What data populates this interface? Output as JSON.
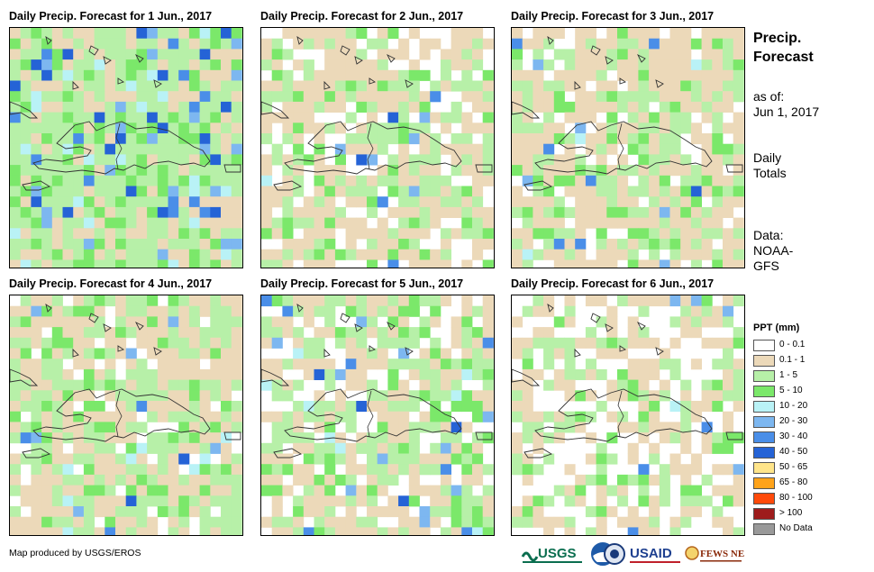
{
  "panels": [
    {
      "title": "Daily Precip. Forecast for 1 Jun., 2017",
      "seed": 11,
      "green": 0.55,
      "tan": 0.3,
      "blue": 0.16
    },
    {
      "title": "Daily Precip. Forecast for 2 Jun., 2017",
      "seed": 23,
      "green": 0.3,
      "tan": 0.42,
      "blue": 0.02
    },
    {
      "title": "Daily Precip. Forecast for 3 Jun., 2017",
      "seed": 37,
      "green": 0.32,
      "tan": 0.52,
      "blue": 0.03
    },
    {
      "title": "Daily Precip. Forecast for 4 Jun., 2017",
      "seed": 41,
      "green": 0.42,
      "tan": 0.42,
      "blue": 0.05
    },
    {
      "title": "Daily Precip. Forecast for 5 Jun., 2017",
      "seed": 53,
      "green": 0.38,
      "tan": 0.36,
      "blue": 0.04
    },
    {
      "title": "Daily Precip. Forecast for 6 Jun., 2017",
      "seed": 67,
      "green": 0.22,
      "tan": 0.38,
      "blue": 0.01
    }
  ],
  "side": {
    "title_line1": "Precip.",
    "title_line2": "Forecast",
    "asof_label": "as of:",
    "asof_date": "Jun 1, 2017",
    "totals_line1": "Daily",
    "totals_line2": "Totals",
    "data_label": "Data:",
    "data_line1": "NOAA-",
    "data_line2": "GFS"
  },
  "legend": {
    "title": "PPT (mm)",
    "items": [
      {
        "label": "0 - 0.1",
        "color": "#ffffff"
      },
      {
        "label": "0.1 - 1",
        "color": "#ecd9b9"
      },
      {
        "label": "1 - 5",
        "color": "#b7f0a8"
      },
      {
        "label": "5 - 10",
        "color": "#7be86a"
      },
      {
        "label": "10 - 20",
        "color": "#b9f2f6"
      },
      {
        "label": "20 - 30",
        "color": "#7db7f0"
      },
      {
        "label": "30 - 40",
        "color": "#4a8ee8"
      },
      {
        "label": "40 - 50",
        "color": "#2563d6"
      },
      {
        "label": "50 - 65",
        "color": "#ffe58a"
      },
      {
        "label": "65 - 80",
        "color": "#ffa31a"
      },
      {
        "label": "80 - 100",
        "color": "#ff4a0a"
      },
      {
        "label": "> 100",
        "color": "#9e1c1c"
      },
      {
        "label": "No Data",
        "color": "#999999"
      }
    ]
  },
  "footer": {
    "credit": "Map produced by USGS/EROS"
  },
  "logos": {
    "usgs": "USGS",
    "usaid": "USAID",
    "fewsnet": "FEWS NET"
  }
}
